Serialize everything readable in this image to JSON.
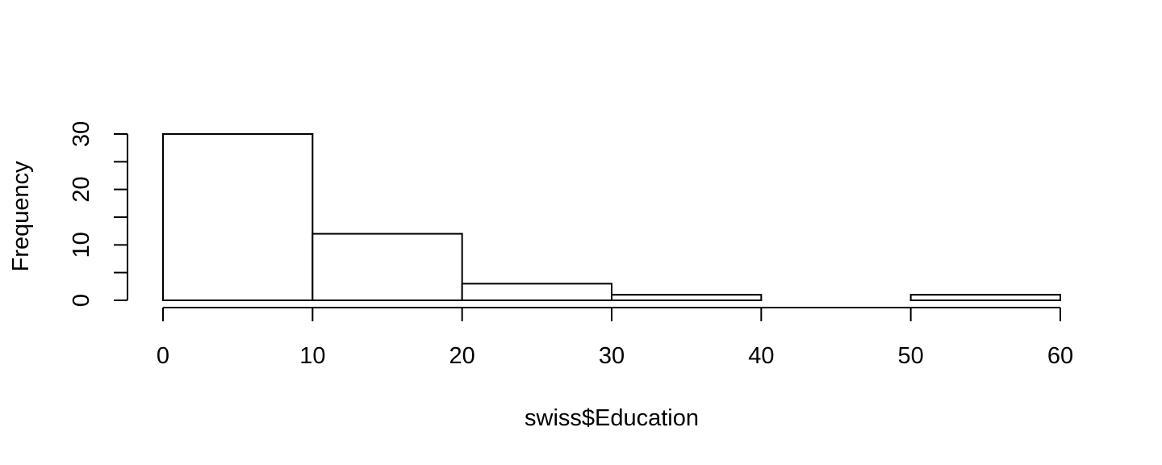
{
  "chart_data": {
    "type": "bar",
    "histogram": true,
    "bins": [
      {
        "start": 0,
        "end": 10,
        "count": 30
      },
      {
        "start": 10,
        "end": 20,
        "count": 12
      },
      {
        "start": 20,
        "end": 30,
        "count": 3
      },
      {
        "start": 30,
        "end": 40,
        "count": 1
      },
      {
        "start": 40,
        "end": 50,
        "count": 0
      },
      {
        "start": 50,
        "end": 60,
        "count": 1
      }
    ],
    "title": "",
    "xlabel": "swiss$Education",
    "ylabel": "Frequency",
    "xlim": [
      0,
      60
    ],
    "ylim": [
      0,
      30
    ],
    "x_ticks": [
      "0",
      "10",
      "20",
      "30",
      "40",
      "50",
      "60"
    ],
    "y_ticks": [
      "0",
      "10",
      "20",
      "30"
    ],
    "grid": false,
    "colors": {
      "bar_fill": "#ffffff",
      "bar_stroke": "#000000",
      "axis": "#000000"
    }
  }
}
